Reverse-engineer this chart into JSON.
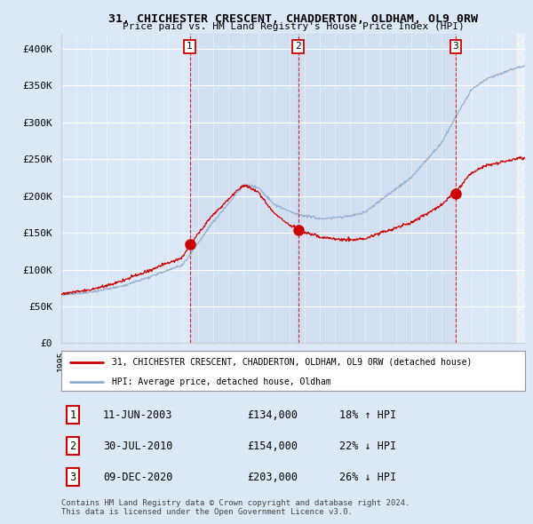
{
  "title": "31, CHICHESTER CRESCENT, CHADDERTON, OLDHAM, OL9 0RW",
  "subtitle": "Price paid vs. HM Land Registry's House Price Index (HPI)",
  "ylim": [
    0,
    420000
  ],
  "yticks": [
    0,
    50000,
    100000,
    150000,
    200000,
    250000,
    300000,
    350000,
    400000
  ],
  "ytick_labels": [
    "£0",
    "£50K",
    "£100K",
    "£150K",
    "£200K",
    "£250K",
    "£300K",
    "£350K",
    "£400K"
  ],
  "background_color": "#dce8f5",
  "plot_bg_color": "#dce8f5",
  "grid_color": "#ffffff",
  "sale_color": "#cc0000",
  "hpi_color": "#90aacc",
  "purchases": [
    {
      "date": "11-JUN-2003",
      "price": 134000,
      "label": "1",
      "hpi_pct": "18%",
      "hpi_dir": "↑"
    },
    {
      "date": "30-JUL-2010",
      "price": 154000,
      "label": "2",
      "hpi_pct": "22%",
      "hpi_dir": "↓"
    },
    {
      "date": "09-DEC-2020",
      "price": 203000,
      "label": "3",
      "hpi_pct": "26%",
      "hpi_dir": "↓"
    }
  ],
  "legend_label_sale": "31, CHICHESTER CRESCENT, CHADDERTON, OLDHAM, OL9 0RW (detached house)",
  "legend_label_hpi": "HPI: Average price, detached house, Oldham",
  "footer": "Contains HM Land Registry data © Crown copyright and database right 2024.\nThis data is licensed under the Open Government Licence v3.0.",
  "shade_color": "#c8d8ee",
  "xlim_left": 1995.0,
  "xlim_right": 2025.5
}
